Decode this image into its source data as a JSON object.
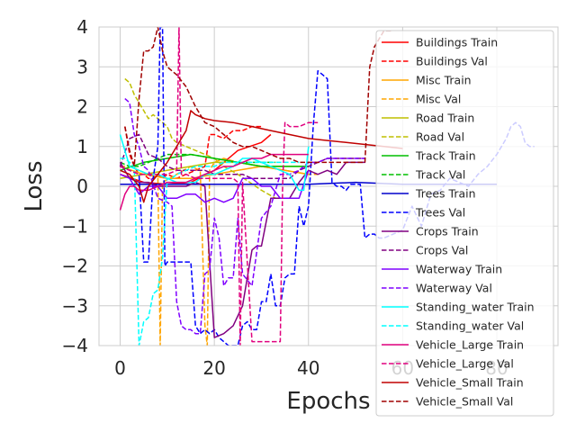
{
  "chart_data": {
    "type": "line",
    "title": "",
    "xlabel": "Epochs",
    "ylabel": "Loss",
    "xlim": [
      -4.5,
      93
    ],
    "ylim": [
      -4,
      4
    ],
    "x_ticks": [
      0,
      20,
      40,
      60,
      80
    ],
    "x_tick_labels": [
      "0",
      "20",
      "40",
      "60",
      "80"
    ],
    "y_ticks": [
      -4,
      -3,
      -2,
      -1,
      0,
      1,
      2,
      3,
      4
    ],
    "y_tick_labels": [
      "−4",
      "−3",
      "−2",
      "−1",
      "0",
      "1",
      "2",
      "3",
      "4"
    ],
    "grid": true,
    "legend_position": "right",
    "series": [
      {
        "name": "Buildings Train",
        "color": "#ff0000",
        "dash": "solid",
        "x": [
          0,
          5,
          10,
          15,
          20,
          25,
          30,
          32
        ],
        "y": [
          0.3,
          0.1,
          0.05,
          0.1,
          0.4,
          0.9,
          1.1,
          1.3
        ]
      },
      {
        "name": "Buildings Val",
        "color": "#ff0000",
        "dash": "dashed",
        "x": [
          1,
          2,
          3,
          4,
          5,
          6,
          7,
          8,
          9,
          10,
          12,
          14,
          16,
          18,
          19,
          20,
          22,
          24,
          26,
          28,
          30
        ],
        "y": [
          1.5,
          0.8,
          0.5,
          0.3,
          0.3,
          0.2,
          0.2,
          0.3,
          0.2,
          0.3,
          0.2,
          0.3,
          0.4,
          0.5,
          1.3,
          1.3,
          1.2,
          1.4,
          1.4,
          1.5,
          1.5
        ]
      },
      {
        "name": "Misc Train",
        "color": "#ffa500",
        "dash": "solid",
        "x": [
          0,
          5,
          10,
          15,
          20,
          25,
          30,
          35,
          40
        ],
        "y": [
          0.5,
          0.3,
          0.2,
          0.2,
          0.3,
          0.4,
          0.5,
          0.4,
          0.3
        ]
      },
      {
        "name": "Misc Val",
        "color": "#ffa500",
        "dash": "dashed",
        "x": [
          0,
          2,
          4,
          6,
          8,
          8.5,
          9,
          12,
          15,
          17,
          18,
          18.5,
          19,
          20,
          22,
          25,
          30,
          35,
          40,
          42
        ],
        "y": [
          0.5,
          0.5,
          0.4,
          0.3,
          0.3,
          -4,
          0.1,
          0.3,
          0.5,
          0.4,
          -3.5,
          -4,
          0.4,
          0.6,
          0.7,
          0.6,
          0.5,
          0.4,
          0.3,
          0.3
        ]
      },
      {
        "name": "Road Train",
        "color": "#bfbf00",
        "dash": "solid",
        "x": [
          0,
          5,
          10,
          15,
          20,
          25,
          30,
          35,
          40
        ],
        "y": [
          0.2,
          0.3,
          0.4,
          0.5,
          0.6,
          0.6,
          0.5,
          0.5,
          0.5
        ]
      },
      {
        "name": "Road Val",
        "color": "#bfbf00",
        "dash": "dashed",
        "x": [
          1,
          2,
          3,
          4,
          5,
          6,
          7,
          8,
          9,
          10,
          11,
          12,
          14,
          16,
          18,
          20,
          22,
          25,
          30,
          33
        ],
        "y": [
          2.7,
          2.6,
          2.3,
          2.1,
          1.9,
          1.7,
          1.8,
          1.7,
          1.6,
          1.5,
          1.2,
          1.1,
          1.0,
          0.9,
          0.8,
          0.7,
          0.5,
          0.3,
          -0.1,
          -0.3
        ]
      },
      {
        "name": "Track Train",
        "color": "#00bf00",
        "dash": "solid",
        "x": [
          0,
          5,
          10,
          15,
          20,
          25,
          30,
          35,
          40
        ],
        "y": [
          0.4,
          0.6,
          0.7,
          0.8,
          0.7,
          0.6,
          0.5,
          0.5,
          0.5
        ]
      },
      {
        "name": "Track Val",
        "color": "#00bf00",
        "dash": "dashed",
        "x": [
          0,
          2,
          4,
          6,
          8,
          10,
          15,
          20,
          25,
          30,
          33
        ],
        "y": [
          0.6,
          0.5,
          0.5,
          0.6,
          0.7,
          0.8,
          0.8,
          0.7,
          0.6,
          0.6,
          0.6
        ]
      },
      {
        "name": "Trees Train",
        "color": "#0000cc",
        "dash": "solid",
        "x": [
          0,
          10,
          20,
          30,
          40,
          50,
          60,
          70,
          80
        ],
        "y": [
          0.05,
          0.05,
          0.05,
          0.05,
          0.05,
          0.1,
          0.05,
          0.05,
          0.05
        ]
      },
      {
        "name": "Trees Val",
        "color": "#0000ff",
        "dash": "dashed",
        "x": [
          0,
          2,
          4,
          5,
          6,
          7,
          8,
          8.5,
          9,
          9.5,
          10,
          11,
          12,
          14,
          15,
          16,
          17,
          18,
          19,
          20,
          21,
          22,
          23,
          24,
          25,
          26,
          27,
          28,
          29,
          30,
          31,
          32,
          33,
          34,
          35,
          36,
          37,
          38,
          39,
          40,
          41,
          42,
          43,
          44,
          45,
          46,
          47,
          48,
          49,
          50,
          51,
          52,
          53,
          54,
          55,
          56,
          58,
          60,
          62,
          64,
          66,
          68,
          70,
          72,
          74,
          76,
          78,
          80,
          82,
          83,
          84,
          85,
          86,
          87,
          88
        ],
        "y": [
          0.5,
          0.4,
          0.3,
          -1.9,
          -1.9,
          0.2,
          1.0,
          4.0,
          4.0,
          -2.0,
          -1.9,
          -1.9,
          -1.9,
          -1.9,
          -1.9,
          -3.5,
          -3.7,
          -3.6,
          -3.7,
          -3.6,
          -3.8,
          -3.9,
          -4.0,
          -4.0,
          -4.0,
          -3.5,
          -3.4,
          -3.6,
          -3.6,
          -2.9,
          -2.9,
          -2.2,
          -3.0,
          -3.0,
          -2.3,
          -2.2,
          -2.2,
          -0.5,
          -1.0,
          -0.5,
          1.5,
          2.9,
          2.8,
          2.7,
          0.1,
          0.0,
          0.0,
          -0.1,
          0.05,
          0.05,
          0.05,
          -1.3,
          -1.2,
          -1.2,
          -1.3,
          -1.3,
          -1.2,
          -1.1,
          -0.5,
          -1.0,
          -0.2,
          -0.1,
          0.2,
          0.1,
          0.0,
          0.3,
          0.5,
          0.8,
          1.2,
          1.5,
          1.6,
          1.5,
          1.1,
          1.0,
          1.0
        ]
      },
      {
        "name": "Crops Train",
        "color": "#800080",
        "dash": "solid",
        "x": [
          0,
          2,
          4,
          6,
          8,
          10,
          12,
          14,
          16,
          18,
          20,
          22,
          24,
          26,
          28,
          29,
          30,
          32,
          34,
          36,
          38,
          40,
          42,
          44,
          46,
          48,
          50,
          52
        ],
        "y": [
          0.6,
          0.2,
          0.1,
          0.1,
          0.0,
          0.0,
          0.0,
          0.0,
          0.1,
          0.0,
          -3.8,
          -3.7,
          -3.5,
          -3.0,
          -1.6,
          -1.5,
          -1.5,
          -0.3,
          -0.3,
          -0.3,
          0.1,
          0.4,
          0.3,
          0.4,
          0.3,
          0.6,
          0.6,
          0.6
        ]
      },
      {
        "name": "Crops Val",
        "color": "#800080",
        "dash": "dashed",
        "x": [
          0,
          2,
          4,
          6,
          8,
          10,
          12,
          14,
          16,
          18,
          20,
          22,
          24,
          26,
          28,
          30,
          32,
          34,
          36,
          38,
          40,
          42,
          44,
          46,
          48,
          50,
          52
        ],
        "y": [
          0.5,
          1.2,
          1.3,
          0.8,
          0.7,
          0.5,
          0.4,
          0.4,
          0.4,
          0.4,
          0.3,
          0.3,
          0.3,
          0.3,
          0.2,
          0.2,
          0.2,
          0.2,
          0.2,
          0.4,
          0.5,
          0.6,
          0.7,
          0.7,
          0.7,
          0.7,
          0.7
        ]
      },
      {
        "name": "Waterway Train",
        "color": "#7f00ff",
        "dash": "solid",
        "x": [
          0,
          2,
          4,
          6,
          8,
          10,
          12,
          14,
          16,
          18,
          20,
          22,
          24,
          26,
          28,
          30,
          32,
          34,
          36,
          38,
          40
        ],
        "y": [
          0.3,
          0.2,
          -0.2,
          0.0,
          0.0,
          -0.3,
          -0.3,
          -0.2,
          -0.2,
          -0.4,
          -0.3,
          -0.4,
          -0.3,
          0.2,
          0.2,
          0.0,
          0.0,
          -0.3,
          -0.3,
          -0.3,
          0.4
        ]
      },
      {
        "name": "Waterway Val",
        "color": "#7f00ff",
        "dash": "dashed",
        "x": [
          1,
          2,
          3,
          4,
          5,
          6,
          8,
          10,
          11,
          12,
          13,
          14,
          15,
          16,
          17,
          18,
          19,
          20,
          21,
          22,
          23,
          24,
          25,
          26,
          28,
          30,
          32,
          34,
          36,
          38,
          40,
          42,
          44,
          46,
          48,
          50,
          52
        ],
        "y": [
          2.2,
          2.1,
          1.3,
          1.0,
          0.5,
          0.4,
          -0.3,
          -0.4,
          -0.5,
          -2.9,
          -3.5,
          -3.6,
          -3.6,
          -3.7,
          -3.7,
          -2.2,
          -2.1,
          -0.8,
          -1.3,
          -2.5,
          -2.3,
          -2.3,
          -0.8,
          -2.2,
          -2.5,
          -0.8,
          -0.5,
          0.3,
          0.3,
          0.4,
          0.6,
          0.6,
          0.7,
          0.7,
          0.7,
          0.7,
          0.7
        ]
      },
      {
        "name": "Standing_water Train",
        "color": "#00ffff",
        "dash": "solid",
        "x": [
          0,
          2,
          4,
          6,
          8,
          10,
          12,
          14,
          16,
          18,
          20,
          22,
          24,
          26,
          28,
          30,
          32,
          34,
          36,
          38,
          39,
          40
        ],
        "y": [
          1.3,
          0.5,
          0.4,
          0.3,
          0.3,
          0.2,
          0.1,
          0.1,
          0.1,
          0.3,
          0.3,
          0.4,
          0.5,
          0.7,
          0.7,
          0.6,
          0.5,
          0.4,
          0.3,
          -0.1,
          -0.1,
          1.0
        ]
      },
      {
        "name": "Standing_water Val",
        "color": "#00ffff",
        "dash": "dashed",
        "x": [
          0,
          1,
          2,
          3,
          4,
          5,
          6,
          7,
          8,
          9,
          10,
          11,
          12,
          14,
          16,
          18,
          20,
          22,
          24,
          26,
          28,
          30,
          32,
          34,
          36,
          38
        ],
        "y": [
          0.7,
          0.7,
          0.6,
          0.5,
          -4.0,
          -3.4,
          -3.3,
          -2.7,
          -2.6,
          -1.8,
          0.2,
          0.2,
          0.3,
          0.4,
          0.5,
          0.5,
          0.5,
          0.6,
          0.6,
          0.6,
          0.6,
          0.6,
          0.6,
          0.6,
          0.6,
          0.6
        ]
      },
      {
        "name": "Vehicle_Large Train",
        "color": "#e0007e",
        "dash": "solid",
        "x": [
          0,
          1,
          2,
          3,
          4,
          5,
          6,
          8,
          10,
          12,
          14,
          16,
          18,
          20,
          22,
          24,
          26,
          28,
          30,
          32,
          34,
          36,
          38,
          40
        ],
        "y": [
          -0.6,
          -0.2,
          0.0,
          0.0,
          -0.1,
          -0.1,
          -0.1,
          0.0,
          0.1,
          0.1,
          0.1,
          0.2,
          0.3,
          0.4,
          0.5,
          0.5,
          0.6,
          0.7,
          0.7,
          0.8,
          0.8,
          0.8,
          0.8,
          0.8
        ]
      },
      {
        "name": "Vehicle_Large Val",
        "color": "#e0007e",
        "dash": "dashed",
        "x": [
          0,
          2,
          4,
          6,
          8,
          10,
          12,
          12.5,
          13,
          14,
          16,
          18,
          20,
          22,
          24,
          25,
          25.5,
          26,
          28,
          30,
          32,
          34,
          34.5,
          35,
          36,
          38,
          40,
          42
        ],
        "y": [
          0.5,
          0.4,
          0.3,
          0.3,
          0.3,
          0.3,
          0.4,
          4.0,
          0.3,
          0.3,
          0.2,
          0.2,
          0.2,
          0.2,
          0.2,
          0.1,
          -4.0,
          0.1,
          -3.9,
          -3.9,
          -3.9,
          -3.9,
          0.0,
          1.6,
          1.5,
          1.5,
          1.6,
          1.6
        ]
      },
      {
        "name": "Vehicle_Small Train",
        "color": "#c00000",
        "dash": "solid",
        "x": [
          0,
          2,
          4,
          5,
          6,
          8,
          10,
          12,
          14,
          15,
          16,
          18,
          20,
          24,
          28,
          32,
          36,
          40,
          44,
          48,
          52,
          56,
          60
        ],
        "y": [
          0.4,
          0.3,
          0.0,
          -0.4,
          0.0,
          0.3,
          0.6,
          1.0,
          1.4,
          1.9,
          1.8,
          1.7,
          1.65,
          1.6,
          1.5,
          1.4,
          1.3,
          1.2,
          1.15,
          1.1,
          1.05,
          1.0,
          0.95
        ]
      },
      {
        "name": "Vehicle_Small Val",
        "color": "#a00000",
        "dash": "dashed",
        "x": [
          1,
          2,
          3,
          4,
          5,
          6,
          7,
          8,
          9,
          10,
          12,
          14,
          16,
          18,
          20,
          22,
          24,
          26,
          28,
          30,
          32,
          34,
          36,
          38,
          40,
          42,
          44,
          46,
          48,
          50,
          52,
          53,
          54,
          55,
          56,
          58
        ],
        "y": [
          1.5,
          0.9,
          0.5,
          2.2,
          3.4,
          3.4,
          3.5,
          4.0,
          3.4,
          3.0,
          2.8,
          2.5,
          2.0,
          1.6,
          1.5,
          1.3,
          1.1,
          1.0,
          1.0,
          0.9,
          0.8,
          0.7,
          0.7,
          0.6,
          0.6,
          0.6,
          0.6,
          0.6,
          0.6,
          0.6,
          0.6,
          3.0,
          3.5,
          3.7,
          3.9,
          3.9
        ]
      }
    ]
  }
}
